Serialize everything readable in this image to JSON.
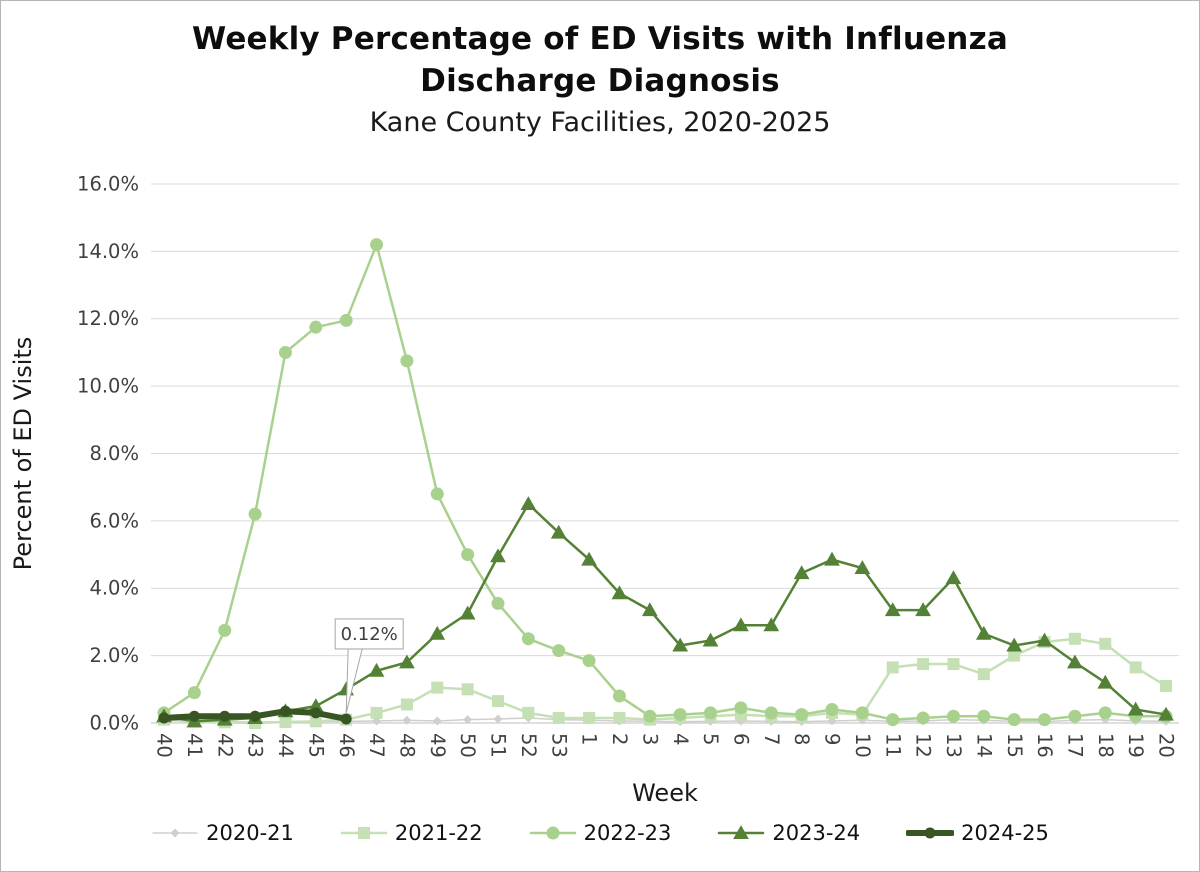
{
  "chart_data": {
    "type": "line",
    "title": "Weekly Percentage of ED Visits with Influenza Discharge Diagnosis",
    "title_lines": [
      "Weekly Percentage of ED Visits with Influenza",
      "Discharge Diagnosis"
    ],
    "subtitle": "Kane County Facilities, 2020-2025",
    "xlabel": "Week",
    "ylabel": "Percent of ED Visits",
    "ylim": [
      0,
      16
    ],
    "y_tick_step": 2,
    "y_tick_suffix": "%",
    "grid": "horizontal",
    "legend_position": "bottom",
    "categories": [
      "40",
      "41",
      "42",
      "43",
      "44",
      "45",
      "46",
      "47",
      "48",
      "49",
      "50",
      "51",
      "52",
      "53",
      "1",
      "2",
      "3",
      "4",
      "5",
      "6",
      "7",
      "8",
      "9",
      "10",
      "11",
      "12",
      "13",
      "14",
      "15",
      "16",
      "17",
      "18",
      "19",
      "20"
    ],
    "series": [
      {
        "name": "2020-21",
        "color": "#cfcfcf",
        "marker": "diamond",
        "marker_size": 4.5,
        "line_width": 1.5,
        "values": [
          0.08,
          0.05,
          0.04,
          0.03,
          0.04,
          0.05,
          0.05,
          0.06,
          0.08,
          0.06,
          0.1,
          0.12,
          0.15,
          0.1,
          0.08,
          0.06,
          0.05,
          0.04,
          0.05,
          0.06,
          0.05,
          0.04,
          0.06,
          0.08,
          0.05,
          0.06,
          0.1,
          0.08,
          0.05,
          0.04,
          0.08,
          0.1,
          0.06,
          0.05
        ]
      },
      {
        "name": "2021-22",
        "color": "#c5e0b4",
        "marker": "square",
        "marker_size": 6,
        "line_width": 2.5,
        "values": [
          0.1,
          0.04,
          0.02,
          0.0,
          0.03,
          0.05,
          0.1,
          0.3,
          0.55,
          1.05,
          1.0,
          0.65,
          0.3,
          0.15,
          0.15,
          0.15,
          0.1,
          0.15,
          0.2,
          0.25,
          0.2,
          0.2,
          0.3,
          0.25,
          1.65,
          1.75,
          1.75,
          1.45,
          2.0,
          2.4,
          2.5,
          2.35,
          1.65,
          1.1
        ]
      },
      {
        "name": "2022-23",
        "color": "#a9d18e",
        "marker": "circle",
        "marker_size": 6.5,
        "line_width": 2.5,
        "values": [
          0.3,
          0.9,
          2.75,
          6.2,
          11.0,
          11.75,
          11.95,
          14.2,
          10.75,
          6.8,
          5.0,
          3.55,
          2.5,
          2.15,
          1.85,
          0.8,
          0.2,
          0.25,
          0.3,
          0.45,
          0.3,
          0.25,
          0.4,
          0.3,
          0.1,
          0.15,
          0.2,
          0.2,
          0.1,
          0.1,
          0.2,
          0.3,
          0.2,
          0.2
        ]
      },
      {
        "name": "2023-24",
        "color": "#538135",
        "marker": "triangle",
        "marker_size": 7.5,
        "line_width": 2.5,
        "values": [
          0.2,
          0.05,
          0.1,
          0.15,
          0.35,
          0.5,
          1.0,
          1.55,
          1.8,
          2.65,
          3.25,
          4.95,
          6.5,
          5.65,
          4.85,
          3.85,
          3.35,
          2.3,
          2.45,
          2.9,
          2.9,
          4.45,
          4.85,
          4.6,
          3.35,
          3.35,
          4.3,
          2.65,
          2.3,
          2.45,
          1.8,
          1.2,
          0.4,
          0.25
        ]
      },
      {
        "name": "2024-25",
        "color": "#375623",
        "marker": "circle",
        "marker_size": 5.5,
        "line_width": 6,
        "values": [
          0.15,
          0.2,
          0.2,
          0.2,
          0.35,
          0.3,
          0.12
        ]
      }
    ],
    "annotation": {
      "label": "0.12%",
      "category": "46",
      "series": "2024-25",
      "value": 0.12
    },
    "colors": {
      "grid": "#d9d9d9",
      "axis_line": "#bfbfbf",
      "tick_text": "#404040",
      "annotation_border": "#a6a6a6"
    }
  }
}
